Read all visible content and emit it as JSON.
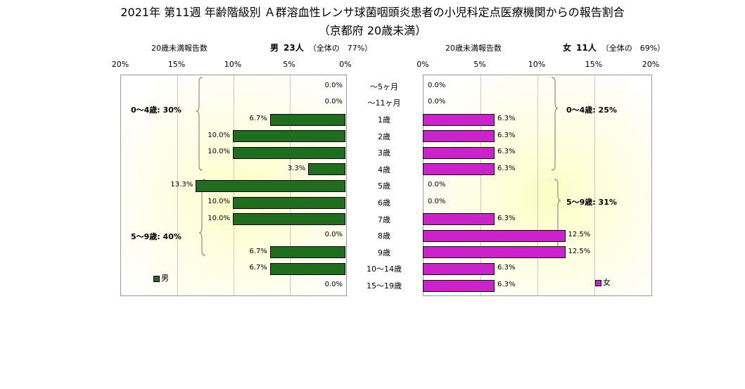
{
  "title": "2021年 第11週 年齢階級別 Ａ群溶血性レンサ球菌咽頭炎患者の小児科定点医療機関からの報告割合",
  "subtitle": "（京都府 20歳未満）",
  "male_header": {
    "label": "20歳未満報告数",
    "sex": "男",
    "count": "23人",
    "note": "（全体の　77%）"
  },
  "female_header": {
    "label": "20歳未満報告数",
    "sex": "女",
    "count": "11人",
    "note": "（全体の　69%）"
  },
  "male_ticks": [
    "20%",
    "15%",
    "10%",
    "5%",
    "0%"
  ],
  "female_ticks": [
    "0%",
    "5%",
    "10%",
    "15%",
    "20%"
  ],
  "male_groups": [
    "0～4歳: 30%",
    "5～9歳: 40%"
  ],
  "female_groups": [
    "0～4歳: 25%",
    "5～9歳: 31%"
  ],
  "legend": {
    "male": "男",
    "female": "女"
  },
  "colors": {
    "male": "#1e6e1e",
    "female": "#cc22cc"
  },
  "chart_data": {
    "type": "bar",
    "orientation": "horizontal-population-pyramid",
    "categories": [
      "～5ヶ月",
      "～11ヶ月",
      "1歳",
      "2歳",
      "3歳",
      "4歳",
      "5歳",
      "6歳",
      "7歳",
      "8歳",
      "9歳",
      "10～14歳",
      "15～19歳"
    ],
    "series": [
      {
        "name": "男",
        "values": [
          0.0,
          0.0,
          6.7,
          10.0,
          10.0,
          3.3,
          13.3,
          10.0,
          10.0,
          0.0,
          6.7,
          6.7,
          0.0
        ],
        "labels": [
          "0.0%",
          "0.0%",
          "6.7%",
          "10.0%",
          "10.0%",
          "3.3%",
          "13.3%",
          "10.0%",
          "10.0%",
          "0.0%",
          "6.7%",
          "6.7%",
          "0.0%"
        ]
      },
      {
        "name": "女",
        "values": [
          0.0,
          0.0,
          6.3,
          6.3,
          6.3,
          6.3,
          0.0,
          0.0,
          6.3,
          12.5,
          12.5,
          6.3,
          6.3
        ],
        "labels": [
          "0.0%",
          "0.0%",
          "6.3%",
          "6.3%",
          "6.3%",
          "6.3%",
          "0.0%",
          "0.0%",
          "6.3%",
          "12.5%",
          "12.5%",
          "6.3%",
          "6.3%"
        ]
      }
    ],
    "xlim": [
      0,
      20
    ],
    "grid": true,
    "legend": "bottom-left / bottom-right"
  }
}
